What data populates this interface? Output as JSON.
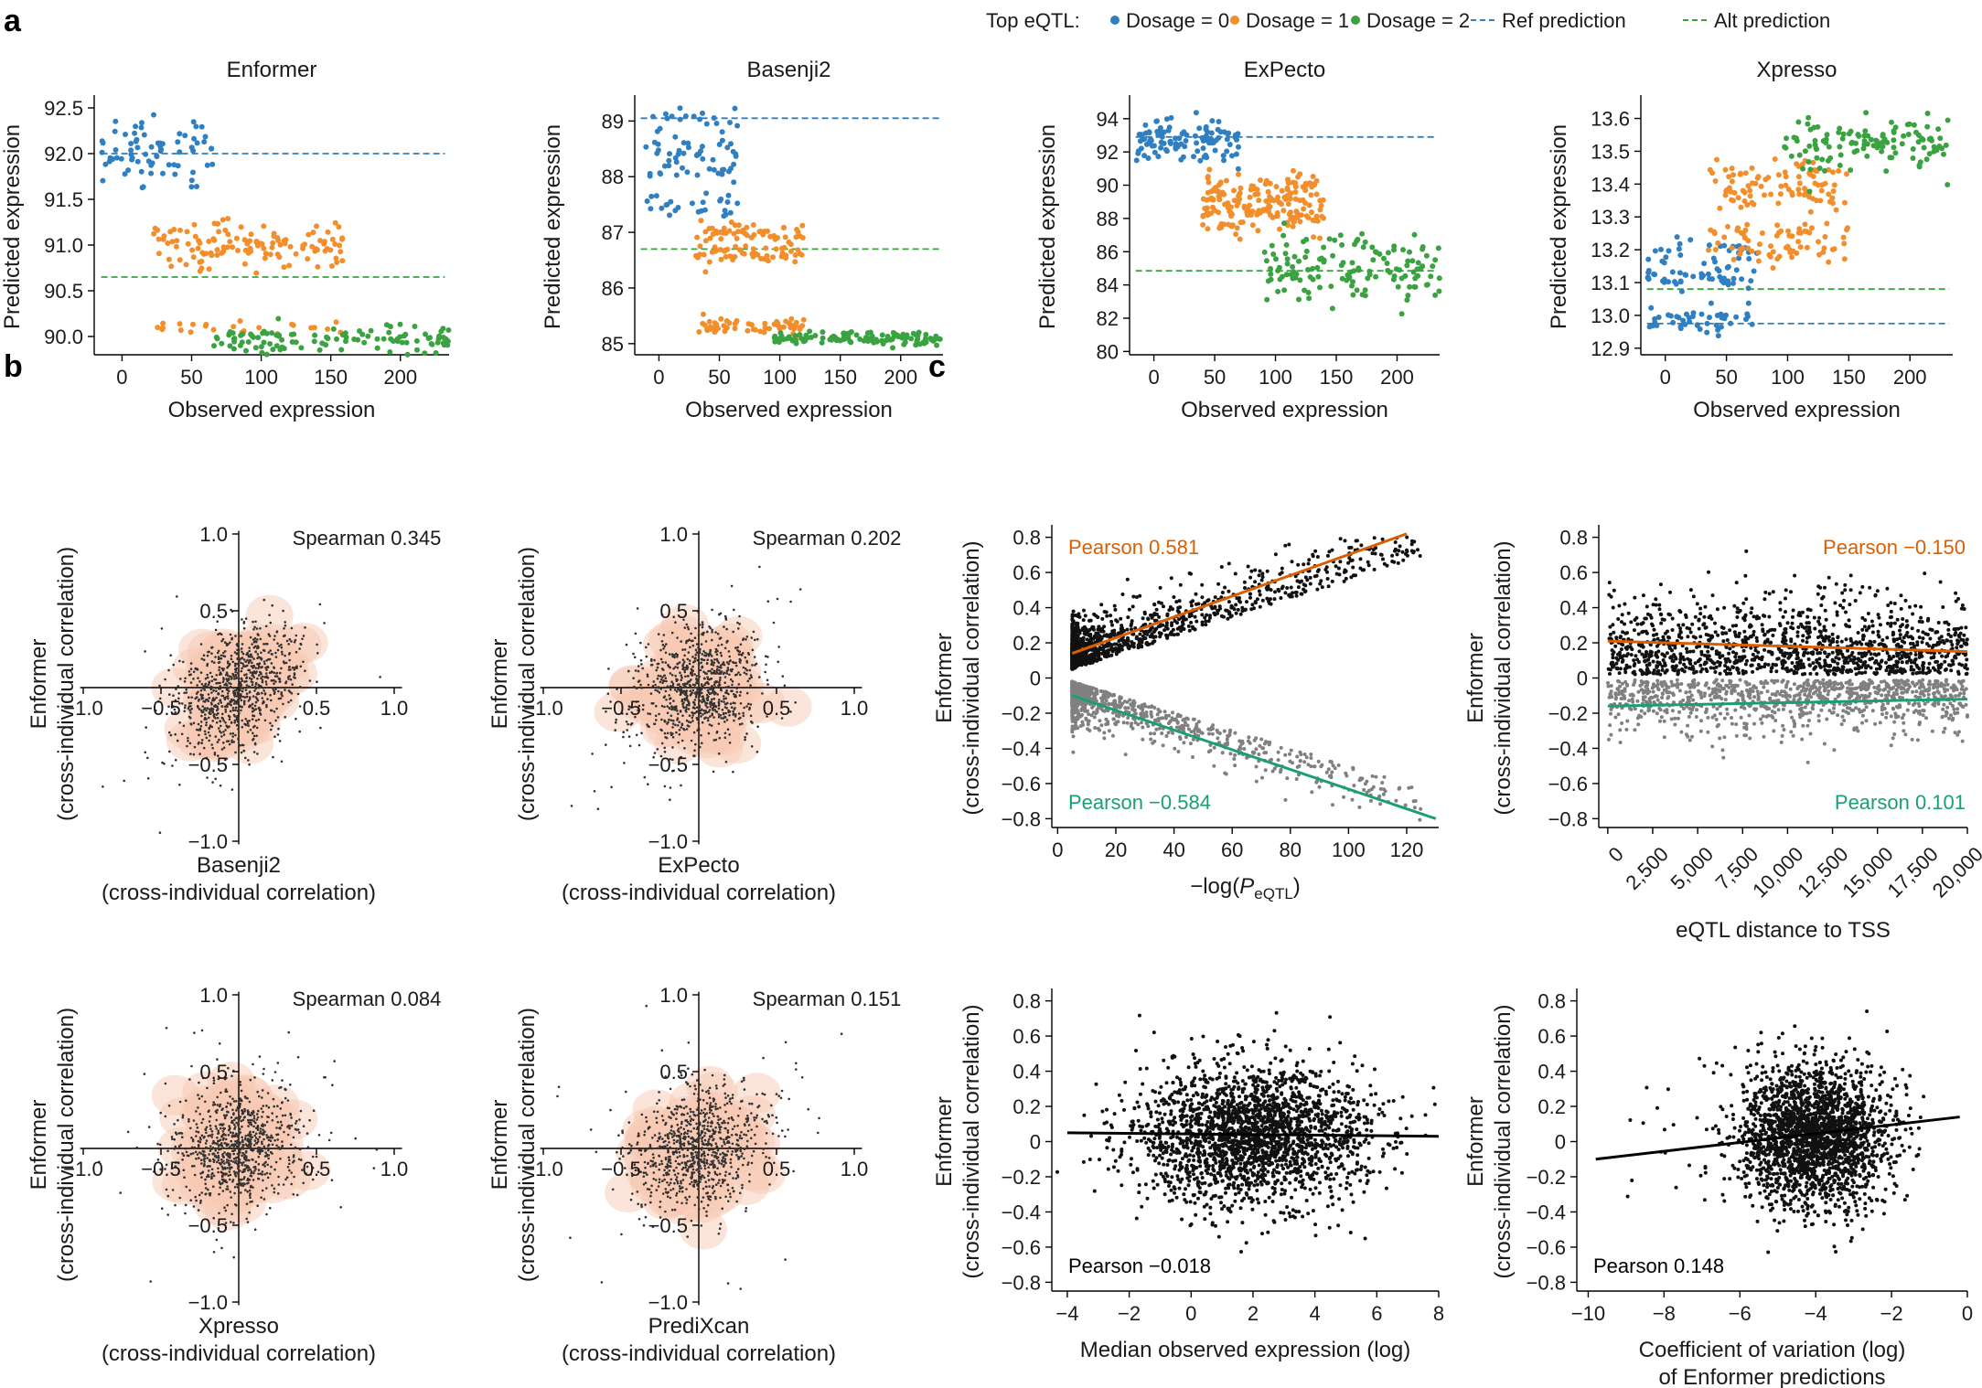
{
  "figure": {
    "panel_labels": [
      "a",
      "b",
      "c"
    ],
    "legend": {
      "title": "Top eQTL:",
      "items": [
        {
          "label": "Dosage = 0",
          "kind": "dot",
          "color": "#2f7fc1"
        },
        {
          "label": "Dosage = 1",
          "kind": "dot",
          "color": "#f28e2b"
        },
        {
          "label": "Dosage = 2",
          "kind": "dot",
          "color": "#3aa241"
        },
        {
          "label": "Ref prediction",
          "kind": "dash",
          "color": "#2f7fc1"
        },
        {
          "label": "Alt prediction",
          "kind": "dash",
          "color": "#3aa241"
        }
      ]
    }
  },
  "colors": {
    "dosage0": "#2f7fc1",
    "dosage1": "#f28e2b",
    "dosage2": "#3aa241",
    "orange_line": "#d95f02",
    "green_line": "#1b9e77",
    "density": "#f7c9b3",
    "black_pts": "#111111",
    "grey_pts": "#808080"
  },
  "chart_data": [
    {
      "id": "a1",
      "panel": "a",
      "type": "scatter",
      "title": "Enformer",
      "xlabel": "Observed expression",
      "ylabel": "Predicted expression",
      "xlim": [
        -20,
        235
      ],
      "ylim": [
        89.8,
        92.6
      ],
      "xticks": [
        0,
        50,
        100,
        150,
        200
      ],
      "yticks": [
        90.0,
        90.5,
        91.0,
        91.5,
        92.0,
        92.5
      ],
      "ytick_labels": [
        "90.0",
        "90.5",
        "91.0",
        "91.5",
        "92.0",
        "92.5"
      ],
      "ref_line": 92.0,
      "alt_line": 90.65,
      "groups": [
        {
          "name": "Dosage = 0",
          "x_range": [
            -15,
            65
          ],
          "y_center": 92.0,
          "y_spread": 0.18,
          "n": 75
        },
        {
          "name": "Dosage = 1",
          "x_range": [
            20,
            160
          ],
          "y_center": 90.98,
          "y_spread": 0.12,
          "n": 150
        },
        {
          "name": "Dosage = 2",
          "x_range": [
            65,
            235
          ],
          "y_center": 89.98,
          "y_spread": 0.08,
          "n": 110
        }
      ]
    },
    {
      "id": "a2",
      "panel": "a",
      "type": "scatter",
      "title": "Basenji2",
      "xlabel": "Observed expression",
      "ylabel": "Predicted expression",
      "xlim": [
        -20,
        235
      ],
      "ylim": [
        84.8,
        89.4
      ],
      "xticks": [
        0,
        50,
        100,
        150,
        200
      ],
      "yticks": [
        85,
        86,
        87,
        88,
        89
      ],
      "ytick_labels": [
        "85",
        "86",
        "87",
        "88",
        "89"
      ],
      "ref_line": 89.05,
      "alt_line": 86.7,
      "groups": [
        {
          "name": "Dosage = 0",
          "x_range": [
            -15,
            65
          ],
          "y_center": 88.2,
          "y_spread": 0.6,
          "n": 95
        },
        {
          "name": "Dosage = 1",
          "x_range": [
            30,
            120
          ],
          "y_center": 86.8,
          "y_spread": 0.3,
          "n": 160
        },
        {
          "name": "Dosage = 2",
          "x_range": [
            95,
            235
          ],
          "y_center": 85.1,
          "y_spread": 0.07,
          "n": 110
        }
      ]
    },
    {
      "id": "a3",
      "panel": "a",
      "type": "scatter",
      "title": "ExPecto",
      "xlabel": "Observed expression",
      "ylabel": "Predicted expression",
      "xlim": [
        -20,
        235
      ],
      "ylim": [
        79.8,
        95.2
      ],
      "xticks": [
        0,
        50,
        100,
        150,
        200
      ],
      "yticks": [
        80,
        82,
        84,
        86,
        88,
        90,
        92,
        94
      ],
      "ytick_labels": [
        "80",
        "82",
        "84",
        "86",
        "88",
        "90",
        "92",
        "94"
      ],
      "ref_line": 92.9,
      "alt_line": 84.85,
      "groups": [
        {
          "name": "Dosage = 0",
          "x_range": [
            -15,
            70
          ],
          "y_center": 92.6,
          "y_spread": 0.6,
          "n": 110
        },
        {
          "name": "Dosage = 1",
          "x_range": [
            40,
            140
          ],
          "y_center": 89.0,
          "y_spread": 0.9,
          "n": 190
        },
        {
          "name": "Dosage = 2",
          "x_range": [
            90,
            235
          ],
          "y_center": 85.0,
          "y_spread": 1.0,
          "n": 140
        }
      ]
    },
    {
      "id": "a4",
      "panel": "a",
      "type": "scatter",
      "title": "Xpresso",
      "xlabel": "Observed expression",
      "ylabel": "Predicted expression",
      "xlim": [
        -20,
        235
      ],
      "ylim": [
        12.88,
        13.66
      ],
      "xticks": [
        0,
        50,
        100,
        150,
        200
      ],
      "yticks": [
        12.9,
        13.0,
        13.1,
        13.2,
        13.3,
        13.4,
        13.5,
        13.6
      ],
      "ytick_labels": [
        "12.9",
        "13.0",
        "13.1",
        "13.2",
        "13.3",
        "13.4",
        "13.5",
        "13.6"
      ],
      "ref_line": 12.975,
      "alt_line": 13.08,
      "groups": [
        {
          "name": "Dosage = 0",
          "x_range": [
            -15,
            75
          ],
          "y_center": 13.05,
          "y_spread": 0.07,
          "n": 120
        },
        {
          "name": "Dosage = 1",
          "x_range": [
            35,
            150
          ],
          "y_center": 13.3,
          "y_spread": 0.07,
          "n": 170
        },
        {
          "name": "Dosage = 2",
          "x_range": [
            95,
            235
          ],
          "y_center": 13.52,
          "y_spread": 0.04,
          "n": 120
        }
      ]
    },
    {
      "id": "b1",
      "panel": "b",
      "type": "scatter",
      "subtype": "density-cross",
      "xlabel": "Basenji2",
      "xlabel2": "(cross-individual correlation)",
      "ylabel": "Enformer",
      "ylabel2": "(cross-individual correlation)",
      "annotation": "Spearman 0.345",
      "xlim": [
        -1,
        1
      ],
      "ylim": [
        -1,
        1
      ],
      "xticks": [
        -1.0,
        -0.5,
        0.5,
        1.0
      ],
      "xtick_labels": [
        "−1.0",
        "−0.5",
        "0.5",
        "1.0"
      ],
      "yticks": [
        -1.0,
        -0.5,
        0.5,
        1.0
      ],
      "ytick_labels": [
        "−1.0",
        "−0.5",
        "0.5",
        "1.0"
      ],
      "spearman": 0.345
    },
    {
      "id": "b2",
      "panel": "b",
      "type": "scatter",
      "subtype": "density-cross",
      "xlabel": "ExPecto",
      "xlabel2": "(cross-individual correlation)",
      "ylabel": "Enformer",
      "ylabel2": "(cross-individual correlation)",
      "annotation": "Spearman 0.202",
      "xlim": [
        -1,
        1
      ],
      "ylim": [
        -1,
        1
      ],
      "xticks": [
        -1.0,
        -0.5,
        0.5,
        1.0
      ],
      "xtick_labels": [
        "−1.0",
        "−0.5",
        "0.5",
        "1.0"
      ],
      "yticks": [
        -1.0,
        -0.5,
        0.5,
        1.0
      ],
      "ytick_labels": [
        "−1.0",
        "−0.5",
        "0.5",
        "1.0"
      ],
      "spearman": 0.202
    },
    {
      "id": "b3",
      "panel": "b",
      "type": "scatter",
      "subtype": "density-cross",
      "xlabel": "Xpresso",
      "xlabel2": "(cross-individual correlation)",
      "ylabel": "Enformer",
      "ylabel2": "(cross-individual correlation)",
      "annotation": "Spearman 0.084",
      "xlim": [
        -1,
        1
      ],
      "ylim": [
        -1,
        1
      ],
      "xticks": [
        -1.0,
        -0.5,
        0.5,
        1.0
      ],
      "xtick_labels": [
        "−1.0",
        "−0.5",
        "0.5",
        "1.0"
      ],
      "yticks": [
        -1.0,
        -0.5,
        0.5,
        1.0
      ],
      "ytick_labels": [
        "−1.0",
        "−0.5",
        "0.5",
        "1.0"
      ],
      "spearman": 0.084
    },
    {
      "id": "b4",
      "panel": "b",
      "type": "scatter",
      "subtype": "density-cross",
      "xlabel": "PrediXcan",
      "xlabel2": "(cross-individual correlation)",
      "ylabel": "Enformer",
      "ylabel2": "(cross-individual correlation)",
      "annotation": "Spearman 0.151",
      "xlim": [
        -1,
        1
      ],
      "ylim": [
        -1,
        1
      ],
      "xticks": [
        -1.0,
        -0.5,
        0.5,
        1.0
      ],
      "xtick_labels": [
        "−1.0",
        "−0.5",
        "0.5",
        "1.0"
      ],
      "yticks": [
        -1.0,
        -0.5,
        0.5,
        1.0
      ],
      "ytick_labels": [
        "−1.0",
        "−0.5",
        "0.5",
        "1.0"
      ],
      "spearman": 0.151
    },
    {
      "id": "c1",
      "panel": "c",
      "type": "scatter",
      "xlabel_main": "−log(",
      "xlabel_italic": "P",
      "xlabel_sub": "eQTL",
      "xlabel_close": ")",
      "ylabel": "Enformer",
      "ylabel2": "(cross-individual correlation)",
      "xlim": [
        -2,
        131
      ],
      "ylim": [
        -0.85,
        0.85
      ],
      "xticks": [
        0,
        20,
        40,
        60,
        80,
        100,
        120
      ],
      "yticks": [
        -0.8,
        -0.6,
        -0.4,
        -0.2,
        0,
        0.2,
        0.4,
        0.6,
        0.8
      ],
      "ytick_labels": [
        "−0.8",
        "−0.6",
        "−0.4",
        "−0.2",
        "0",
        "0.2",
        "0.4",
        "0.6",
        "0.8"
      ],
      "fits": [
        {
          "label": "Pearson 0.581",
          "color": "orange",
          "x0": 5,
          "y0": 0.14,
          "x1": 120,
          "y1": 0.82,
          "label_pos": "top-left"
        },
        {
          "label": "Pearson −0.584",
          "color": "green",
          "x0": 5,
          "y0": -0.1,
          "x1": 130,
          "y1": -0.8,
          "label_pos": "bottom-left"
        }
      ]
    },
    {
      "id": "c2",
      "panel": "c",
      "type": "scatter",
      "xlabel": "eQTL distance to TSS",
      "ylabel": "Enformer",
      "ylabel2": "(cross-individual correlation)",
      "xlim": [
        -500,
        20000
      ],
      "ylim": [
        -0.85,
        0.85
      ],
      "xticks": [
        0,
        2500,
        5000,
        7500,
        10000,
        12500,
        15000,
        17500,
        20000
      ],
      "xtick_labels": [
        "0",
        "2,500",
        "5,000",
        "7,500",
        "10,000",
        "12,500",
        "15,000",
        "17,500",
        "20,000"
      ],
      "yticks": [
        -0.8,
        -0.6,
        -0.4,
        -0.2,
        0,
        0.2,
        0.4,
        0.6,
        0.8
      ],
      "ytick_labels": [
        "−0.8",
        "−0.6",
        "−0.4",
        "−0.2",
        "0",
        "0.2",
        "0.4",
        "0.6",
        "0.8"
      ],
      "fits": [
        {
          "label": "Pearson −0.150",
          "color": "orange",
          "x0": 0,
          "y0": 0.21,
          "x1": 20000,
          "y1": 0.15,
          "label_pos": "top-right"
        },
        {
          "label": "Pearson 0.101",
          "color": "green",
          "x0": 0,
          "y0": -0.16,
          "x1": 20000,
          "y1": -0.12,
          "label_pos": "bottom-right"
        }
      ]
    },
    {
      "id": "c3",
      "panel": "c",
      "type": "scatter",
      "xlabel": "Median observed expression (log)",
      "ylabel": "Enformer",
      "ylabel2": "(cross-individual correlation)",
      "xlim": [
        -4.5,
        8
      ],
      "ylim": [
        -0.85,
        0.85
      ],
      "xticks": [
        -4,
        -2,
        0,
        2,
        4,
        6,
        8
      ],
      "xtick_labels": [
        "−4",
        "−2",
        "0",
        "2",
        "4",
        "6",
        "8"
      ],
      "yticks": [
        -0.8,
        -0.6,
        -0.4,
        -0.2,
        0,
        0.2,
        0.4,
        0.6,
        0.8
      ],
      "ytick_labels": [
        "−0.8",
        "−0.6",
        "−0.4",
        "−0.2",
        "0",
        "0.2",
        "0.4",
        "0.6",
        "0.8"
      ],
      "fits": [
        {
          "label": "Pearson −0.018",
          "color": "black",
          "x0": -4,
          "y0": 0.05,
          "x1": 8,
          "y1": 0.03,
          "label_pos": "bottom-left"
        }
      ]
    },
    {
      "id": "c4",
      "panel": "c",
      "type": "scatter",
      "xlabel": "Coefficient of variation (log)",
      "xlabel2": "of Enformer predictions",
      "ylabel": "Enformer",
      "ylabel2": "(cross-individual correlation)",
      "xlim": [
        -10.3,
        0
      ],
      "ylim": [
        -0.85,
        0.85
      ],
      "xticks": [
        -10,
        -8,
        -6,
        -4,
        -2,
        0
      ],
      "xtick_labels": [
        "−10",
        "−8",
        "−6",
        "−4",
        "−2",
        "0"
      ],
      "yticks": [
        -0.8,
        -0.6,
        -0.4,
        -0.2,
        0,
        0.2,
        0.4,
        0.6,
        0.8
      ],
      "ytick_labels": [
        "−0.8",
        "−0.6",
        "−0.4",
        "−0.2",
        "0",
        "0.2",
        "0.4",
        "0.6",
        "0.8"
      ],
      "fits": [
        {
          "label": "Pearson 0.148",
          "color": "black",
          "x0": -9.8,
          "y0": -0.1,
          "x1": -0.2,
          "y1": 0.14,
          "label_pos": "bottom-left"
        }
      ]
    }
  ]
}
